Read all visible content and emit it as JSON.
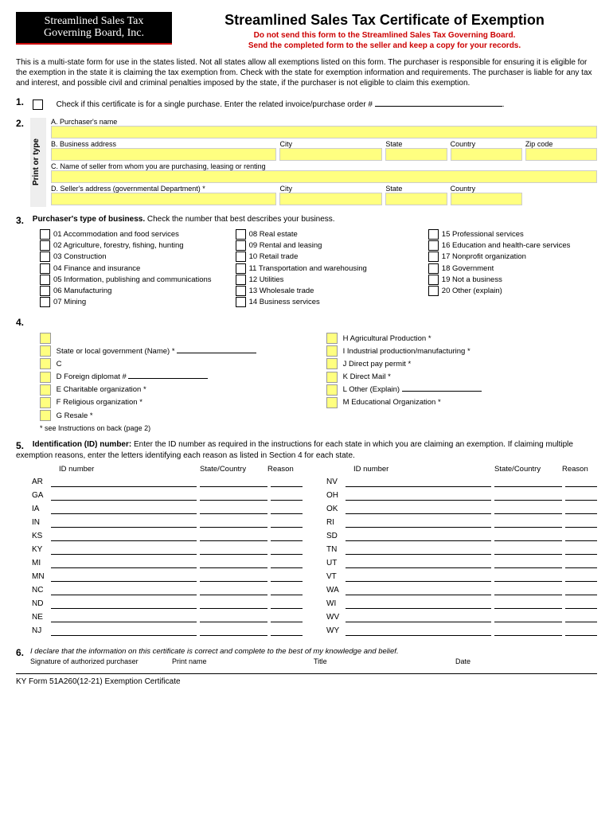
{
  "logo": {
    "line1": "Streamlined Sales Tax",
    "line2": "Governing Board, Inc."
  },
  "title": "Streamlined Sales Tax Certificate of Exemption",
  "warning1": "Do not send this form to the Streamlined Sales Tax Governing Board.",
  "warning2": "Send the completed form to the seller and keep a copy for your records.",
  "intro": "This is a multi-state form for use in the states listed. Not all states allow all exemptions listed on this form. The purchaser is responsible for ensuring it is eligible for the exemption in the state it is claiming the tax exemption from. Check with the state for exemption information and requirements. The purchaser is liable for any tax and interest, and possible civil and criminal penalties imposed by the state, if the purchaser is not eligible to claim this exemption.",
  "sec1": {
    "num": "1.",
    "text": "Check if this certificate is for a single purchase. Enter the related invoice/purchase order #"
  },
  "sec2": {
    "num": "2.",
    "print_label": "Print or type",
    "a": "A. Purchaser's name",
    "b": "B. Business address",
    "city": "City",
    "state": "State",
    "country": "Country",
    "zip": "Zip code",
    "c": "C. Name of seller from whom you are purchasing, leasing or renting",
    "d": "D. Seller's address (governmental Department) *"
  },
  "sec3": {
    "num": "3.",
    "title": "Purchaser's type of business.",
    "sub": "Check the number that best describes your business.",
    "col1": [
      "01  Accommodation and food services",
      "02  Agriculture, forestry, fishing, hunting",
      "03  Construction",
      "04  Finance and insurance",
      "05  Information, publishing and communications",
      "06  Manufacturing",
      "07  Mining"
    ],
    "col2": [
      "08  Real estate",
      "09  Rental and leasing",
      "10  Retail trade",
      "11  Transportation and warehousing",
      "12  Utilities",
      "13  Wholesale trade",
      "14  Business services"
    ],
    "col3": [
      "15  Professional services",
      "16  Education and health-care services",
      "17  Nonprofit organization",
      "18  Government",
      "19  Not a business",
      "20  Other (explain)"
    ]
  },
  "sec4": {
    "num": "4.",
    "left": [
      {
        "label": ""
      },
      {
        "label": "State or local government (Name) *",
        "line": true
      },
      {
        "label": "C"
      },
      {
        "label": "D Foreign diplomat #",
        "line": true
      },
      {
        "label": "E Charitable organization *"
      },
      {
        "label": "F Religious organization *"
      },
      {
        "label": "G Resale *"
      }
    ],
    "right": [
      {
        "label": "H  Agricultural Production *"
      },
      {
        "label": "I   Industrial production/manufacturing *"
      },
      {
        "label": "J   Direct pay permit *"
      },
      {
        "label": "K  Direct Mail *"
      },
      {
        "label": "L  Other (Explain)",
        "line": true
      },
      {
        "label": "M Educational Organization *"
      }
    ],
    "note": "*   see Instructions on back (page 2)"
  },
  "sec5": {
    "num": "5.",
    "title": "Identification (ID) number:",
    "text": "Enter the ID number as required in the instructions for each state in which you are claiming an exemption. If claiming multiple exemption reasons, enter the letters identifying each reason as listed in Section 4 for each state.",
    "h1": "ID number",
    "h2": "State/Country",
    "h3": "Reason",
    "left": [
      "AR",
      "GA",
      "IA",
      "IN",
      "KS",
      "KY",
      "MI",
      "MN",
      "NC",
      "ND",
      "NE",
      "NJ"
    ],
    "right": [
      "NV",
      "OH",
      "OK",
      "RI",
      "SD",
      "TN",
      "UT",
      "VT",
      "WA",
      "WI",
      "WV",
      "WY"
    ]
  },
  "sec6": {
    "num": "6.",
    "declare": "I declare that the information on this certificate is correct and complete to the best of my knowledge and belief.",
    "sig": "Signature of authorized purchaser",
    "print": "Print name",
    "title": "Title",
    "date": "Date"
  },
  "footer": "KY Form 51A260(12-21)   Exemption Certificate"
}
